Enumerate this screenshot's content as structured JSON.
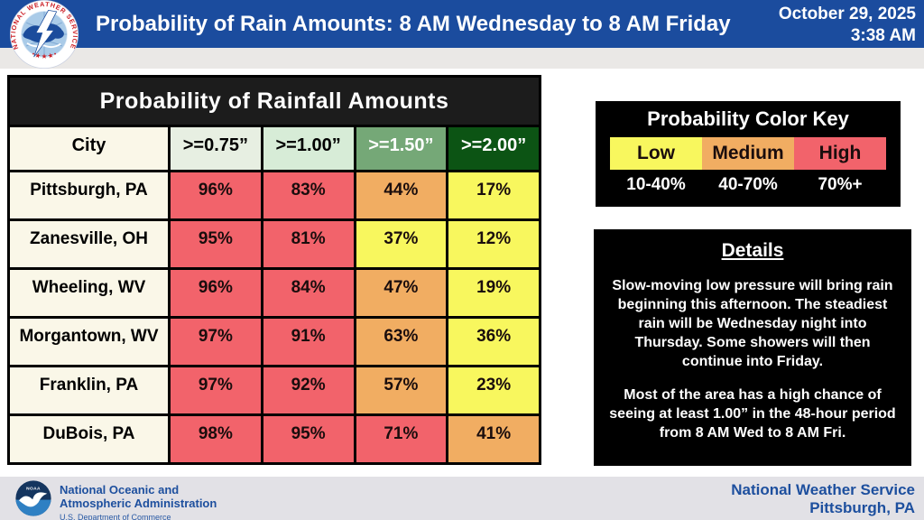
{
  "header": {
    "title": "Probability of Rain Amounts: 8 AM Wednesday to 8 AM Friday",
    "date": "October 29, 2025",
    "time": "3:38 AM",
    "nws_logo_arc_text": "NATIONAL WEATHER SERVICE",
    "nws_logo_stars": "• ★ ★ ★ •",
    "accent_blue": "#1b4c9e"
  },
  "table": {
    "title": "Probability of Rainfall Amounts",
    "columns": [
      {
        "label": "City",
        "bg": "#faf7e8",
        "fg": "#000000"
      },
      {
        "label": ">=0.75”",
        "bg": "#e7efe2",
        "fg": "#000000"
      },
      {
        "label": ">=1.00”",
        "bg": "#d7ecd7",
        "fg": "#000000"
      },
      {
        "label": ">=1.50”",
        "bg": "#75a877",
        "fg": "#ffffff"
      },
      {
        "label": ">=2.00”",
        "bg": "#0c5414",
        "fg": "#ffffff"
      }
    ],
    "level_colors": {
      "low": "#f8f75e",
      "medium": "#f1ad62",
      "high": "#f2636b"
    },
    "rows": [
      {
        "city": "Pittsburgh, PA",
        "values": [
          "96%",
          "83%",
          "44%",
          "17%"
        ],
        "levels": [
          "high",
          "high",
          "medium",
          "low"
        ]
      },
      {
        "city": "Zanesville, OH",
        "values": [
          "95%",
          "81%",
          "37%",
          "12%"
        ],
        "levels": [
          "high",
          "high",
          "low",
          "low"
        ]
      },
      {
        "city": "Wheeling, WV",
        "values": [
          "96%",
          "84%",
          "47%",
          "19%"
        ],
        "levels": [
          "high",
          "high",
          "medium",
          "low"
        ]
      },
      {
        "city": "Morgantown, WV",
        "values": [
          "97%",
          "91%",
          "63%",
          "36%"
        ],
        "levels": [
          "high",
          "high",
          "medium",
          "low"
        ]
      },
      {
        "city": "Franklin, PA",
        "values": [
          "97%",
          "92%",
          "57%",
          "23%"
        ],
        "levels": [
          "high",
          "high",
          "medium",
          "low"
        ]
      },
      {
        "city": "DuBois, PA",
        "values": [
          "98%",
          "95%",
          "71%",
          "41%"
        ],
        "levels": [
          "high",
          "high",
          "high",
          "medium"
        ]
      }
    ]
  },
  "color_key": {
    "title": "Probability Color Key",
    "entries": [
      {
        "label": "Low",
        "range": "10-40%",
        "color": "#f8f75e"
      },
      {
        "label": "Medium",
        "range": "40-70%",
        "color": "#f1ad62"
      },
      {
        "label": "High",
        "range": "70%+",
        "color": "#f2636b"
      }
    ]
  },
  "details": {
    "title": "Details",
    "paragraphs": [
      "Slow-moving low pressure will bring rain beginning this afternoon. The steadiest rain will be Wednesday night into Thursday.  Some showers will then continue into Friday.",
      "Most of the area has a high chance of seeing at least 1.00” in the 48-hour period from 8 AM Wed to 8 AM Fri."
    ]
  },
  "footer": {
    "noaa_line1": "National Oceanic and",
    "noaa_line2": "Atmospheric Administration",
    "noaa_sub": "U.S. Department of Commerce",
    "noaa_logo_text": "NOAA",
    "office_line1": "National Weather Service",
    "office_line2": "Pittsburgh, PA"
  },
  "chart_data": {
    "type": "table",
    "title": "Probability of Rainfall Amounts",
    "columns": [
      "City",
      ">=0.75\"",
      ">=1.00\"",
      ">=1.50\"",
      ">=2.00\""
    ],
    "rows": [
      [
        "Pittsburgh, PA",
        96,
        83,
        44,
        17
      ],
      [
        "Zanesville, OH",
        95,
        81,
        37,
        12
      ],
      [
        "Wheeling, WV",
        96,
        84,
        47,
        19
      ],
      [
        "Morgantown, WV",
        97,
        91,
        63,
        36
      ],
      [
        "Franklin, PA",
        97,
        92,
        57,
        23
      ],
      [
        "DuBois, PA",
        98,
        95,
        71,
        41
      ]
    ],
    "units": "percent probability of rainfall amount, 8 AM Wed - 8 AM Fri",
    "color_scale": [
      {
        "label": "Low",
        "range": "10-40%",
        "color": "#f8f75e"
      },
      {
        "label": "Medium",
        "range": "40-70%",
        "color": "#f1ad62"
      },
      {
        "label": "High",
        "range": "70%+",
        "color": "#f2636b"
      }
    ]
  }
}
